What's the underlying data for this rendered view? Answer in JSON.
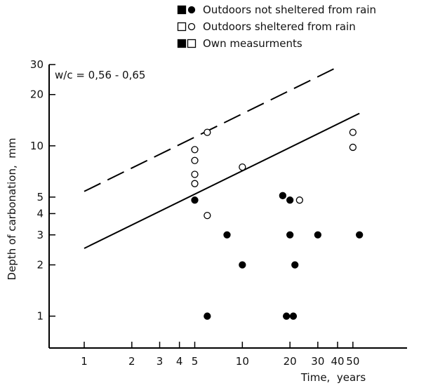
{
  "chart_data": {
    "type": "scatter",
    "xscale": "log",
    "yscale": "log",
    "xlim": [
      0.6,
      110
    ],
    "ylim": [
      0.65,
      30
    ],
    "xlabel": "Time,  years",
    "ylabel": "Depth of carbonation,  mm",
    "annotation": "w/c  = 0,56 - 0,65",
    "x_ticks": [
      {
        "value": 1,
        "label": "1"
      },
      {
        "value": 2,
        "label": "2"
      },
      {
        "value": 3,
        "label": "3"
      },
      {
        "value": 4,
        "label": "4"
      },
      {
        "value": 5,
        "label": "5"
      },
      {
        "value": 10,
        "label": "10"
      },
      {
        "value": 20,
        "label": "20"
      },
      {
        "value": 30,
        "label": "30"
      },
      {
        "value": 40,
        "label": "40"
      },
      {
        "value": 50,
        "label": "50"
      }
    ],
    "y_ticks": [
      {
        "value": 1,
        "label": "1"
      },
      {
        "value": 2,
        "label": "2"
      },
      {
        "value": 3,
        "label": "3"
      },
      {
        "value": 4,
        "label": "4"
      },
      {
        "value": 5,
        "label": "5"
      },
      {
        "value": 10,
        "label": "10"
      },
      {
        "value": 20,
        "label": "20"
      },
      {
        "value": 30,
        "label": "30"
      }
    ],
    "legend": {
      "placement": "top-right",
      "entries": [
        {
          "symbols": [
            "filled-square",
            "filled-circle"
          ],
          "label": "Outdoors not sheltered from rain"
        },
        {
          "symbols": [
            "open-square",
            "open-circle"
          ],
          "label": "Outdoors sheltered from rain"
        },
        {
          "symbols": [
            "filled-square",
            "open-square"
          ],
          "label": "Own measurments"
        }
      ]
    },
    "series": [
      {
        "marker": "filled-circle",
        "points": [
          {
            "x": 5,
            "y": 4.8
          },
          {
            "x": 6,
            "y": 1
          },
          {
            "x": 8,
            "y": 3
          },
          {
            "x": 10,
            "y": 2
          },
          {
            "x": 18,
            "y": 5.1
          },
          {
            "x": 19,
            "y": 1
          },
          {
            "x": 20,
            "y": 4.8
          },
          {
            "x": 20,
            "y": 3
          },
          {
            "x": 21,
            "y": 1
          },
          {
            "x": 21.5,
            "y": 2
          },
          {
            "x": 30,
            "y": 3
          },
          {
            "x": 55,
            "y": 3
          }
        ]
      },
      {
        "marker": "open-circle",
        "points": [
          {
            "x": 5,
            "y": 9.5
          },
          {
            "x": 5,
            "y": 8.2
          },
          {
            "x": 5,
            "y": 6.8
          },
          {
            "x": 5,
            "y": 6
          },
          {
            "x": 6,
            "y": 12
          },
          {
            "x": 6,
            "y": 3.9
          },
          {
            "x": 10,
            "y": 7.5
          },
          {
            "x": 23,
            "y": 4.8
          },
          {
            "x": 50,
            "y": 12
          },
          {
            "x": 50,
            "y": 9.8
          }
        ]
      }
    ],
    "lines": [
      {
        "style": "dashed",
        "points": [
          {
            "x": 1,
            "y": 5.4
          },
          {
            "x": 40,
            "y": 29
          }
        ]
      },
      {
        "style": "solid",
        "points": [
          {
            "x": 1,
            "y": 2.5
          },
          {
            "x": 55,
            "y": 15.5
          }
        ]
      }
    ],
    "grid": false
  }
}
